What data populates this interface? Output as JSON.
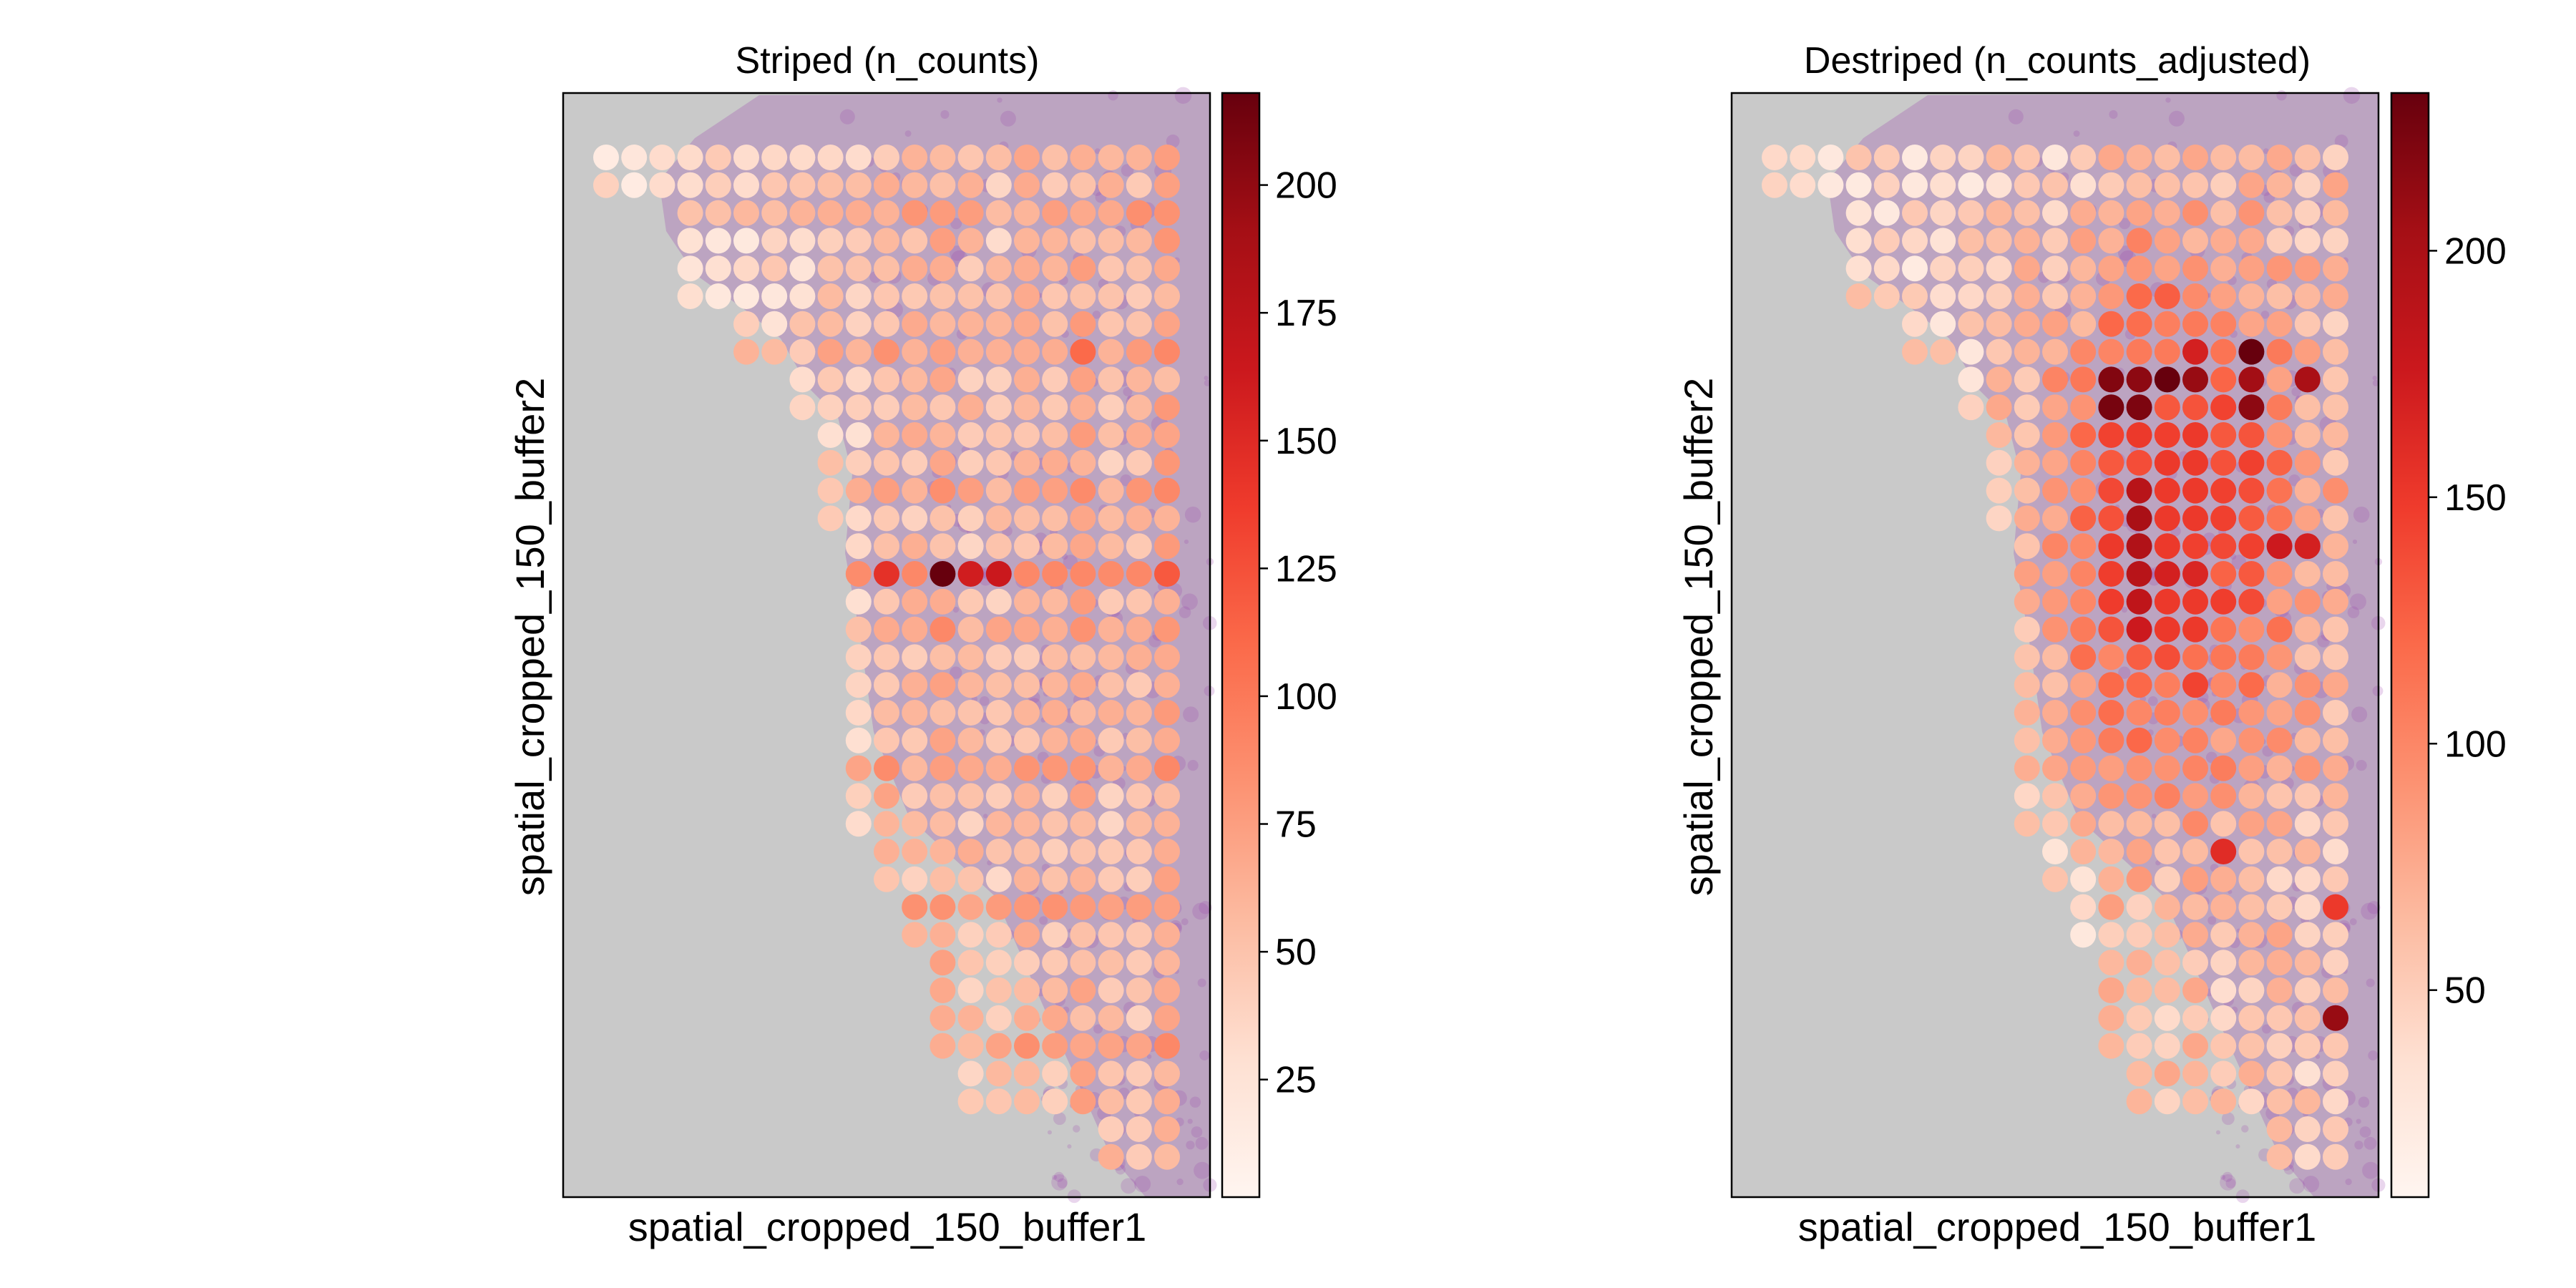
{
  "colors": {
    "background_tissue": "#c9c9c9",
    "tissue_stain": "#9b45ad",
    "colormap": "Reds",
    "colormap_stops": [
      "#fff5f0",
      "#fee0d2",
      "#fcbba1",
      "#fc9272",
      "#fb6a4a",
      "#ef3b2c",
      "#cb181d",
      "#a50f15",
      "#67000d"
    ]
  },
  "chart_data": [
    {
      "type": "scatter",
      "subtype": "spatial-spot-heatmap",
      "title": "Striped (n_counts)",
      "xlabel": "spatial_cropped_150_buffer1",
      "ylabel": "spatial_cropped_150_buffer2",
      "colorbar": {
        "vmin": 2,
        "vmax": 218,
        "ticks": [
          25,
          50,
          75,
          100,
          125,
          150,
          175,
          200
        ]
      },
      "x": [
        0,
        1,
        2,
        3,
        4,
        5,
        6,
        7,
        8,
        9,
        10,
        11,
        12,
        13,
        14,
        15,
        16,
        17,
        18,
        19,
        20
      ],
      "y_rows_from_top": [
        0,
        1,
        2,
        3,
        4,
        5,
        6,
        7,
        8,
        9,
        10,
        11,
        12,
        13,
        14,
        15,
        16,
        17,
        18,
        19,
        20,
        21,
        22,
        23,
        24,
        25,
        26,
        27,
        28,
        29,
        30,
        31,
        32,
        33,
        34,
        35,
        36
      ],
      "row_spans": [
        [
          0,
          20
        ],
        [
          0,
          20
        ],
        [
          3,
          20
        ],
        [
          3,
          20
        ],
        [
          3,
          20
        ],
        [
          3,
          20
        ],
        [
          5,
          20
        ],
        [
          5,
          20
        ],
        [
          7,
          20
        ],
        [
          7,
          20
        ],
        [
          8,
          20
        ],
        [
          8,
          20
        ],
        [
          8,
          20
        ],
        [
          8,
          20
        ],
        [
          9,
          20
        ],
        [
          9,
          20
        ],
        [
          9,
          20
        ],
        [
          9,
          20
        ],
        [
          9,
          20
        ],
        [
          9,
          20
        ],
        [
          9,
          20
        ],
        [
          9,
          20
        ],
        [
          9,
          20
        ],
        [
          9,
          20
        ],
        [
          9,
          20
        ],
        [
          10,
          20
        ],
        [
          10,
          20
        ],
        [
          11,
          20
        ],
        [
          11,
          20
        ],
        [
          12,
          20
        ],
        [
          12,
          20
        ],
        [
          12,
          20
        ],
        [
          12,
          20
        ],
        [
          13,
          20
        ],
        [
          13,
          20
        ],
        [
          18,
          20
        ],
        [
          18,
          20
        ]
      ],
      "striping": "column-wise and row-wise count bands",
      "notable_values": [
        {
          "x": 10,
          "y": 15,
          "value": 145
        },
        {
          "x": 12,
          "y": 15,
          "value": 218
        },
        {
          "x": 13,
          "y": 15,
          "value": 160
        },
        {
          "x": 14,
          "y": 15,
          "value": 165
        },
        {
          "x": 17,
          "y": 7,
          "value": 110
        },
        {
          "x": 20,
          "y": 15,
          "value": 120
        }
      ],
      "value_range_typical": [
        5,
        90
      ]
    },
    {
      "type": "scatter",
      "subtype": "spatial-spot-heatmap",
      "title": "Destriped (n_counts_adjusted)",
      "xlabel": "spatial_cropped_150_buffer1",
      "ylabel": "spatial_cropped_150_buffer2",
      "colorbar": {
        "vmin": 8,
        "vmax": 232,
        "ticks": [
          50,
          100,
          150,
          200
        ]
      },
      "x": [
        0,
        1,
        2,
        3,
        4,
        5,
        6,
        7,
        8,
        9,
        10,
        11,
        12,
        13,
        14,
        15,
        16,
        17,
        18,
        19,
        20
      ],
      "y_rows_from_top": [
        0,
        1,
        2,
        3,
        4,
        5,
        6,
        7,
        8,
        9,
        10,
        11,
        12,
        13,
        14,
        15,
        16,
        17,
        18,
        19,
        20,
        21,
        22,
        23,
        24,
        25,
        26,
        27,
        28,
        29,
        30,
        31,
        32,
        33,
        34,
        35,
        36
      ],
      "row_spans": [
        [
          0,
          20
        ],
        [
          0,
          20
        ],
        [
          3,
          20
        ],
        [
          3,
          20
        ],
        [
          3,
          20
        ],
        [
          3,
          20
        ],
        [
          5,
          20
        ],
        [
          5,
          20
        ],
        [
          7,
          20
        ],
        [
          7,
          20
        ],
        [
          8,
          20
        ],
        [
          8,
          20
        ],
        [
          8,
          20
        ],
        [
          8,
          20
        ],
        [
          9,
          20
        ],
        [
          9,
          20
        ],
        [
          9,
          20
        ],
        [
          9,
          20
        ],
        [
          9,
          20
        ],
        [
          9,
          20
        ],
        [
          9,
          20
        ],
        [
          9,
          20
        ],
        [
          9,
          20
        ],
        [
          9,
          20
        ],
        [
          9,
          20
        ],
        [
          10,
          20
        ],
        [
          10,
          20
        ],
        [
          11,
          20
        ],
        [
          11,
          20
        ],
        [
          12,
          20
        ],
        [
          12,
          20
        ],
        [
          12,
          20
        ],
        [
          12,
          20
        ],
        [
          13,
          20
        ],
        [
          13,
          20
        ],
        [
          18,
          20
        ],
        [
          18,
          20
        ]
      ],
      "notable_values": [
        {
          "x": 12,
          "y": 8,
          "value": 220
        },
        {
          "x": 13,
          "y": 8,
          "value": 215
        },
        {
          "x": 14,
          "y": 8,
          "value": 232
        },
        {
          "x": 15,
          "y": 8,
          "value": 210
        },
        {
          "x": 17,
          "y": 8,
          "value": 205
        },
        {
          "x": 19,
          "y": 8,
          "value": 200
        },
        {
          "x": 12,
          "y": 9,
          "value": 225
        },
        {
          "x": 13,
          "y": 9,
          "value": 222
        },
        {
          "x": 17,
          "y": 9,
          "value": 215
        },
        {
          "x": 17,
          "y": 7,
          "value": 232
        },
        {
          "x": 15,
          "y": 7,
          "value": 170
        },
        {
          "x": 13,
          "y": 12,
          "value": 190
        },
        {
          "x": 13,
          "y": 13,
          "value": 200
        },
        {
          "x": 13,
          "y": 14,
          "value": 195
        },
        {
          "x": 13,
          "y": 15,
          "value": 190
        },
        {
          "x": 14,
          "y": 15,
          "value": 170
        },
        {
          "x": 15,
          "y": 15,
          "value": 165
        },
        {
          "x": 18,
          "y": 14,
          "value": 175
        },
        {
          "x": 19,
          "y": 14,
          "value": 170
        },
        {
          "x": 13,
          "y": 16,
          "value": 185
        },
        {
          "x": 13,
          "y": 17,
          "value": 175
        },
        {
          "x": 20,
          "y": 31,
          "value": 210
        },
        {
          "x": 16,
          "y": 25,
          "value": 160
        },
        {
          "x": 20,
          "y": 27,
          "value": 150
        }
      ],
      "value_range_typical": [
        20,
        150
      ]
    }
  ]
}
